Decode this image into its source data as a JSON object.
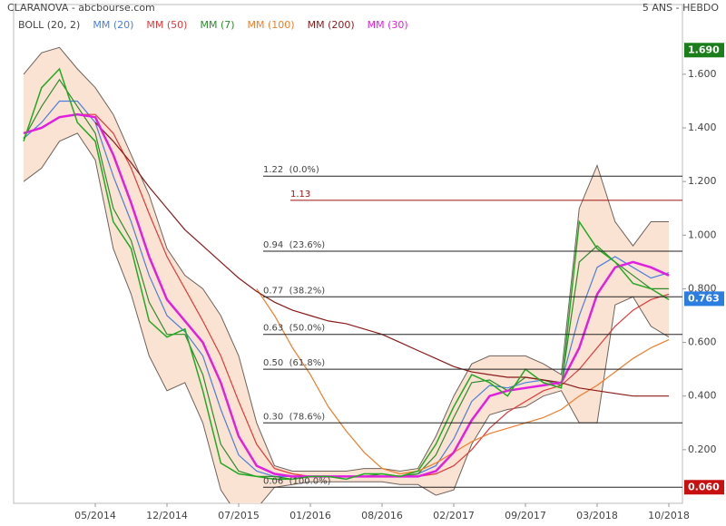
{
  "chart_data": {
    "type": "line",
    "title": "CLARANOVA - abcbourse.com",
    "subtitle": "5 ANS - HEBDO",
    "categories": [
      null,
      null,
      null,
      null,
      "05/2014",
      null,
      null,
      null,
      "12/2014",
      null,
      null,
      null,
      "07/2015",
      null,
      null,
      null,
      "01/2016",
      null,
      null,
      null,
      "08/2016",
      null,
      null,
      null,
      "02/2017",
      null,
      null,
      null,
      "09/2017",
      null,
      null,
      null,
      "03/2018",
      null,
      null,
      null,
      "10/2018"
    ],
    "price": {
      "color": "#22aa22",
      "values": [
        1.35,
        1.55,
        1.62,
        1.42,
        1.35,
        1.05,
        0.95,
        0.68,
        0.62,
        0.65,
        0.42,
        0.15,
        0.11,
        0.1,
        0.09,
        0.09,
        0.1,
        0.1,
        0.09,
        0.11,
        0.11,
        0.1,
        0.12,
        0.22,
        0.36,
        0.48,
        0.45,
        0.4,
        0.5,
        0.45,
        0.43,
        1.05,
        0.95,
        0.9,
        0.82,
        0.8,
        0.76
      ]
    },
    "series": [
      {
        "name": "BOLL (20, 2)",
        "color": "#6e625b",
        "fill": "#fbe3d3",
        "values": [
          1.6,
          1.68,
          1.7,
          1.62,
          1.55,
          1.45,
          1.3,
          1.15,
          0.95,
          0.85,
          0.8,
          0.7,
          0.55,
          0.3,
          0.14,
          0.12,
          0.12,
          0.12,
          0.12,
          0.13,
          0.13,
          0.12,
          0.13,
          0.25,
          0.4,
          0.52,
          0.55,
          0.55,
          0.55,
          0.52,
          0.48,
          1.1,
          1.26,
          1.05,
          0.96,
          1.05,
          1.05
        ],
        "lower_values": [
          1.2,
          1.25,
          1.35,
          1.38,
          1.28,
          0.95,
          0.78,
          0.55,
          0.42,
          0.45,
          0.3,
          0.05,
          -0.05,
          -0.02,
          0.06,
          0.07,
          0.08,
          0.08,
          0.08,
          0.08,
          0.08,
          0.07,
          0.07,
          0.03,
          0.05,
          0.22,
          0.33,
          0.35,
          0.36,
          0.4,
          0.42,
          0.3,
          0.3,
          0.74,
          0.77,
          0.66,
          0.62
        ]
      },
      {
        "name": "MM (20)",
        "color": "#4a7fe0",
        "values": [
          1.36,
          1.42,
          1.5,
          1.5,
          1.42,
          1.22,
          1.05,
          0.85,
          0.7,
          0.64,
          0.55,
          0.35,
          0.18,
          0.12,
          0.1,
          0.1,
          0.1,
          0.1,
          0.1,
          0.1,
          0.1,
          0.1,
          0.11,
          0.14,
          0.24,
          0.38,
          0.44,
          0.43,
          0.45,
          0.46,
          0.45,
          0.7,
          0.88,
          0.92,
          0.88,
          0.84,
          0.86
        ]
      },
      {
        "name": "MM (50)",
        "color": "#e03a3a",
        "values": [
          null,
          null,
          null,
          1.45,
          1.45,
          1.38,
          1.25,
          1.08,
          0.92,
          0.8,
          0.68,
          0.55,
          0.38,
          0.22,
          0.13,
          0.11,
          0.1,
          0.1,
          0.1,
          0.1,
          0.1,
          0.1,
          0.1,
          0.11,
          0.14,
          0.2,
          0.28,
          0.34,
          0.38,
          0.42,
          0.44,
          0.5,
          0.58,
          0.66,
          0.72,
          0.76,
          0.78
        ]
      },
      {
        "name": "MM (7)",
        "color": "#2e8b2e",
        "values": [
          1.36,
          1.48,
          1.58,
          1.48,
          1.38,
          1.1,
          0.98,
          0.75,
          0.63,
          0.63,
          0.48,
          0.22,
          0.12,
          0.1,
          0.1,
          0.09,
          0.1,
          0.1,
          0.1,
          0.1,
          0.11,
          0.1,
          0.11,
          0.18,
          0.32,
          0.45,
          0.46,
          0.42,
          0.47,
          0.46,
          0.44,
          0.9,
          0.96,
          0.9,
          0.85,
          0.8,
          0.8
        ]
      },
      {
        "name": "MM (100)",
        "color": "#f07d2a",
        "values": [
          null,
          null,
          null,
          null,
          null,
          null,
          null,
          null,
          null,
          null,
          null,
          null,
          null,
          0.8,
          0.7,
          0.58,
          0.48,
          0.36,
          0.27,
          0.19,
          0.13,
          0.11,
          0.12,
          0.15,
          0.19,
          0.23,
          0.26,
          0.28,
          0.3,
          0.32,
          0.35,
          0.4,
          0.44,
          0.49,
          0.54,
          0.58,
          0.61
        ]
      },
      {
        "name": "MM (200)",
        "color": "#8b1a1a",
        "values": [
          null,
          null,
          null,
          null,
          1.42,
          1.35,
          1.27,
          1.18,
          1.1,
          1.02,
          0.96,
          0.9,
          0.84,
          0.79,
          0.75,
          0.72,
          0.7,
          0.68,
          0.67,
          0.65,
          0.63,
          0.6,
          0.57,
          0.54,
          0.51,
          0.49,
          0.48,
          0.47,
          0.47,
          0.46,
          0.45,
          0.43,
          0.42,
          0.41,
          0.4,
          0.4,
          0.4
        ]
      },
      {
        "name": "MM (30)",
        "color": "#e020e0",
        "values": [
          1.38,
          1.4,
          1.44,
          1.45,
          1.44,
          1.3,
          1.12,
          0.92,
          0.76,
          0.68,
          0.6,
          0.45,
          0.25,
          0.14,
          0.11,
          0.1,
          0.1,
          0.1,
          0.1,
          0.1,
          0.1,
          0.1,
          0.1,
          0.12,
          0.19,
          0.31,
          0.4,
          0.42,
          0.43,
          0.44,
          0.45,
          0.58,
          0.78,
          0.88,
          0.9,
          0.88,
          0.85
        ]
      }
    ],
    "ylim": [
      0,
      1.86
    ],
    "yticks": [
      {
        "value": 0.2,
        "label": "0.200"
      },
      {
        "value": 0.4,
        "label": "0.400"
      },
      {
        "value": 0.6,
        "label": "0.600"
      },
      {
        "value": 0.8,
        "label": "0.800"
      },
      {
        "value": 1.0,
        "label": "1.000"
      },
      {
        "value": 1.2,
        "label": "1.200"
      },
      {
        "value": 1.4,
        "label": "1.400"
      },
      {
        "value": 1.6,
        "label": "1.600"
      }
    ],
    "levels": [
      {
        "label": "1.22  (0.0%)",
        "value": 1.22
      },
      {
        "label": "1.13",
        "value": 1.13,
        "color": "#a01010"
      },
      {
        "label": "0.94  (23.6%)",
        "value": 0.94
      },
      {
        "label": "0.77  (38.2%)",
        "value": 0.77
      },
      {
        "label": "0.63  (50.0%)",
        "value": 0.63
      },
      {
        "label": "0.50  (61.8%)",
        "value": 0.5
      },
      {
        "label": "0.30  (78.6%)",
        "value": 0.3
      },
      {
        "label": "0.06  (100.0%)",
        "value": 0.06
      }
    ],
    "price_tags": [
      {
        "label": "1.690",
        "value": 1.69,
        "color": "#1a7f1a"
      },
      {
        "label": "0.763",
        "value": 0.763,
        "color": "#2b7de0"
      },
      {
        "label": "0.060",
        "value": 0.06,
        "color": "#c81010"
      }
    ]
  }
}
